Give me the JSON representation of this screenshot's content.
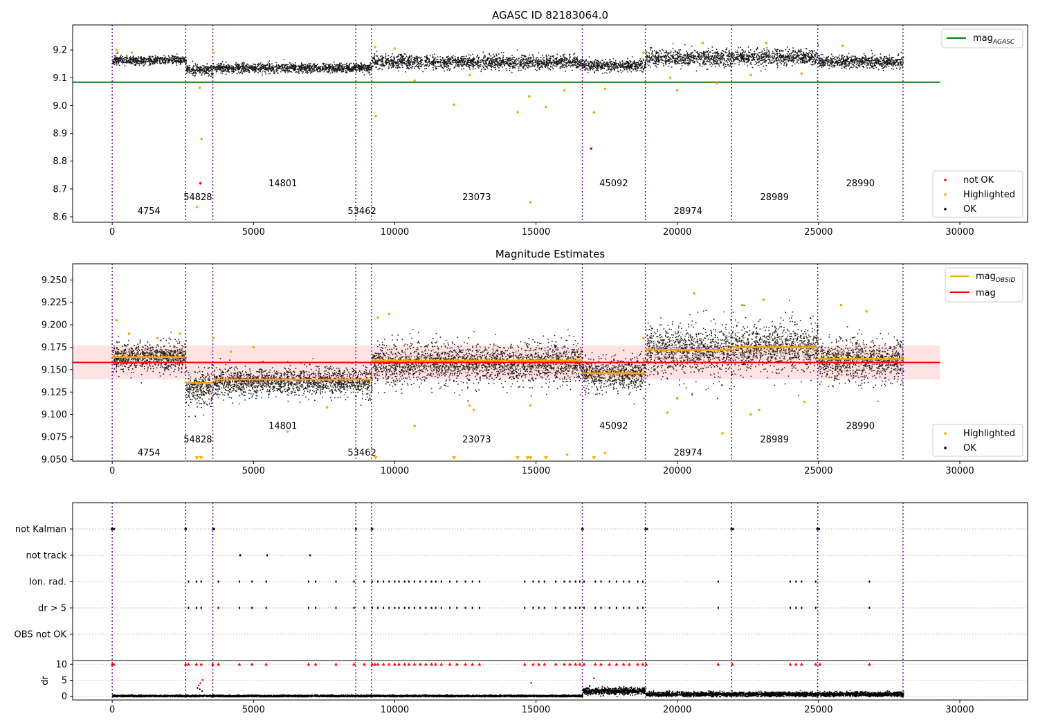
{
  "chart_data": [
    {
      "type": "scatter",
      "title": "AGASC ID 82183064.0",
      "xlim": [
        -1400,
        32400
      ],
      "ylim": [
        8.58,
        9.29
      ],
      "xticks": [
        0,
        5000,
        10000,
        15000,
        20000,
        25000,
        30000
      ],
      "yticks": [
        8.6,
        8.7,
        8.8,
        8.9,
        9.0,
        9.1,
        9.2
      ],
      "ytick_decimals": 1,
      "obs_boundaries": [
        0,
        2600,
        3560,
        8620,
        9180,
        16640,
        18870,
        21920,
        24970,
        27990
      ],
      "obsids": [
        {
          "label": "4754",
          "x": 1300,
          "y": 8.61
        },
        {
          "label": "54828",
          "x": 3030,
          "y": 8.66
        },
        {
          "label": "14801",
          "x": 6040,
          "y": 8.71
        },
        {
          "label": "53462",
          "x": 8840,
          "y": 8.61
        },
        {
          "label": "23073",
          "x": 12900,
          "y": 8.66
        },
        {
          "label": "45092",
          "x": 17750,
          "y": 8.71
        },
        {
          "label": "28974",
          "x": 20380,
          "y": 8.61
        },
        {
          "label": "28989",
          "x": 23440,
          "y": 8.66
        },
        {
          "label": "28990",
          "x": 26480,
          "y": 8.71
        }
      ],
      "mag_agasc": {
        "value": 9.084,
        "x_range": [
          -1400,
          29300
        ],
        "color": "#008000"
      },
      "segments": [
        {
          "x0": 0,
          "x1": 2600,
          "level": 9.165,
          "sd": 0.008
        },
        {
          "x0": 2600,
          "x1": 3560,
          "level": 9.13,
          "sd": 0.01
        },
        {
          "x0": 3560,
          "x1": 8620,
          "level": 9.137,
          "sd": 0.008
        },
        {
          "x0": 8620,
          "x1": 9180,
          "level": 9.137,
          "sd": 0.008
        },
        {
          "x0": 9180,
          "x1": 16640,
          "level": 9.158,
          "sd": 0.012
        },
        {
          "x0": 16640,
          "x1": 18870,
          "level": 9.146,
          "sd": 0.01
        },
        {
          "x0": 18870,
          "x1": 21920,
          "level": 9.172,
          "sd": 0.015
        },
        {
          "x0": 21920,
          "x1": 24970,
          "level": 9.175,
          "sd": 0.014
        },
        {
          "x0": 24970,
          "x1": 27990,
          "level": 9.16,
          "sd": 0.012
        }
      ],
      "not_ok_points": [
        [
          3120,
          8.72
        ],
        [
          16950,
          8.845
        ]
      ],
      "highlighted_points": [
        [
          3100,
          9.064
        ],
        [
          3000,
          8.635
        ],
        [
          3160,
          8.88
        ],
        [
          9330,
          8.962
        ],
        [
          10700,
          9.09
        ],
        [
          12100,
          9.003
        ],
        [
          12650,
          9.11
        ],
        [
          14350,
          8.976
        ],
        [
          14800,
          8.652
        ],
        [
          14760,
          9.033
        ],
        [
          15350,
          8.995
        ],
        [
          16000,
          9.055
        ],
        [
          17050,
          8.975
        ],
        [
          17450,
          9.06
        ],
        [
          19750,
          9.1
        ],
        [
          20000,
          9.055
        ],
        [
          21400,
          9.08
        ],
        [
          22600,
          9.11
        ],
        [
          24400,
          9.115
        ],
        [
          150,
          9.2
        ],
        [
          700,
          9.19
        ],
        [
          3580,
          9.19
        ],
        [
          9300,
          9.21
        ],
        [
          10000,
          9.205
        ],
        [
          18800,
          9.19
        ],
        [
          20900,
          9.225
        ],
        [
          23150,
          9.225
        ],
        [
          25850,
          9.215
        ]
      ],
      "legend": {
        "line": [
          {
            "label_main": "mag",
            "label_sub": "AGASC",
            "color": "#008000"
          }
        ],
        "points": [
          {
            "label": "not OK",
            "color": "#ff0000"
          },
          {
            "label": "Highlighted",
            "color": "#ffa500"
          },
          {
            "label": "OK",
            "color": "#000000"
          }
        ]
      }
    },
    {
      "type": "scatter",
      "title": "Magnitude Estimates",
      "xlim": [
        -1400,
        32400
      ],
      "ylim": [
        9.048,
        9.268
      ],
      "xticks": [
        0,
        5000,
        10000,
        15000,
        20000,
        25000,
        30000
      ],
      "yticks": [
        9.05,
        9.075,
        9.1,
        9.125,
        9.15,
        9.175,
        9.2,
        9.225,
        9.25
      ],
      "ytick_decimals": 3,
      "obs_boundaries": [
        0,
        2600,
        3560,
        8620,
        9180,
        16640,
        18870,
        21920,
        24970,
        27990
      ],
      "obsids": [
        {
          "label": "4754",
          "x": 1300,
          "y": 9.054
        },
        {
          "label": "54828",
          "x": 3030,
          "y": 9.069
        },
        {
          "label": "14801",
          "x": 6040,
          "y": 9.084
        },
        {
          "label": "53462",
          "x": 8840,
          "y": 9.054
        },
        {
          "label": "23073",
          "x": 12900,
          "y": 9.069
        },
        {
          "label": "45092",
          "x": 17750,
          "y": 9.084
        },
        {
          "label": "28974",
          "x": 20380,
          "y": 9.054
        },
        {
          "label": "28989",
          "x": 23440,
          "y": 9.069
        },
        {
          "label": "28990",
          "x": 26480,
          "y": 9.084
        }
      ],
      "mag": {
        "value": 9.158,
        "band": [
          9.139,
          9.177
        ],
        "x_range": [
          -1400,
          29300
        ],
        "color": "#ff0000"
      },
      "mag_obsid": [
        {
          "x0": 0,
          "x1": 2600,
          "value": 9.164
        },
        {
          "x0": 2600,
          "x1": 3560,
          "value": 9.135
        },
        {
          "x0": 3560,
          "x1": 9180,
          "value": 9.139
        },
        {
          "x0": 9180,
          "x1": 16640,
          "value": 9.16
        },
        {
          "x0": 16640,
          "x1": 18870,
          "value": 9.146
        },
        {
          "x0": 18870,
          "x1": 21920,
          "value": 9.172
        },
        {
          "x0": 21920,
          "x1": 24970,
          "value": 9.175
        },
        {
          "x0": 24970,
          "x1": 27990,
          "value": 9.162
        }
      ],
      "segments": [
        {
          "x0": 0,
          "x1": 2600,
          "level": 9.165,
          "sd": 0.008
        },
        {
          "x0": 2600,
          "x1": 3560,
          "level": 9.13,
          "sd": 0.01
        },
        {
          "x0": 3560,
          "x1": 8620,
          "level": 9.137,
          "sd": 0.008
        },
        {
          "x0": 8620,
          "x1": 9180,
          "level": 9.137,
          "sd": 0.008
        },
        {
          "x0": 9180,
          "x1": 16640,
          "level": 9.158,
          "sd": 0.012
        },
        {
          "x0": 16640,
          "x1": 18870,
          "level": 9.146,
          "sd": 0.01
        },
        {
          "x0": 18870,
          "x1": 21920,
          "level": 9.172,
          "sd": 0.015
        },
        {
          "x0": 21920,
          "x1": 24970,
          "level": 9.175,
          "sd": 0.014
        },
        {
          "x0": 24970,
          "x1": 27990,
          "level": 9.16,
          "sd": 0.012
        }
      ],
      "highlighted_points": [
        [
          150,
          9.205
        ],
        [
          600,
          9.19
        ],
        [
          1600,
          9.185
        ],
        [
          2400,
          9.19
        ],
        [
          3580,
          9.185
        ],
        [
          4200,
          9.17
        ],
        [
          5000,
          9.175
        ],
        [
          6200,
          9.081
        ],
        [
          7600,
          9.108
        ],
        [
          9400,
          9.208
        ],
        [
          9800,
          9.212
        ],
        [
          10700,
          9.087
        ],
        [
          12650,
          9.11
        ],
        [
          12800,
          9.105
        ],
        [
          14800,
          9.11
        ],
        [
          16100,
          9.055
        ],
        [
          17450,
          9.057
        ],
        [
          18800,
          9.185
        ],
        [
          19650,
          9.102
        ],
        [
          20000,
          9.118
        ],
        [
          20600,
          9.235
        ],
        [
          21600,
          9.079
        ],
        [
          22300,
          9.222
        ],
        [
          22600,
          9.1
        ],
        [
          22900,
          9.105
        ],
        [
          23050,
          9.228
        ],
        [
          24500,
          9.114
        ],
        [
          25800,
          9.222
        ],
        [
          26700,
          9.215
        ]
      ],
      "offscale_points": [
        3000,
        3150,
        9320,
        12100,
        14350,
        14700,
        14800,
        15350,
        17050
      ],
      "legend": {
        "line": [
          {
            "label_main": "mag",
            "label_sub": "OBSID",
            "color": "#ffa500"
          },
          {
            "label_main": "mag",
            "label_sub": "",
            "color": "#ff0000"
          }
        ],
        "points": [
          {
            "label": "Highlighted",
            "color": "#ffa500"
          },
          {
            "label": "OK",
            "color": "#000000"
          }
        ]
      }
    },
    {
      "type": "scatter",
      "title": "",
      "xlim": [
        -1400,
        32400
      ],
      "flag_rows": [
        "not Kalman",
        "not track",
        "Ion. rad.",
        "dr > 5",
        "OBS not OK"
      ],
      "obs_boundaries": [
        0,
        2600,
        3560,
        8620,
        9180,
        16640,
        18870,
        21920,
        24970,
        27990
      ],
      "flags": {
        "not Kalman": [
          [
            -50,
            100
          ],
          [
            2560,
            2640
          ],
          [
            3540,
            3640
          ],
          [
            8600,
            8660
          ],
          [
            9150,
            9240
          ],
          [
            16600,
            16690
          ],
          [
            18840,
            18960
          ],
          [
            21880,
            22010
          ],
          [
            24920,
            25050
          ]
        ],
        "not track": [
          [
            4500,
            4560
          ],
          [
            5460,
            5500
          ],
          [
            6980,
            7010
          ]
        ],
        "Ion. rad.": [
          2700,
          2980,
          3150,
          3760,
          4500,
          4950,
          5450,
          6950,
          7200,
          7920,
          8560,
          8920,
          9200,
          9400,
          9600,
          9800,
          10000,
          10150,
          10350,
          10500,
          10700,
          10900,
          11100,
          11300,
          11450,
          11650,
          11950,
          12200,
          12500,
          12750,
          13000,
          14600,
          14900,
          15100,
          15300,
          15700,
          16000,
          16200,
          16400,
          16550,
          16700,
          17100,
          17300,
          17600,
          17850,
          18100,
          18300,
          18600,
          18780,
          21450,
          24000,
          24200,
          24400,
          24900,
          26800
        ],
        "dr > 5": [
          2700,
          2980,
          3150,
          3760,
          4500,
          4950,
          5450,
          6950,
          7200,
          7920,
          8560,
          8920,
          9200,
          9400,
          9600,
          9800,
          10000,
          10150,
          10350,
          10500,
          10700,
          10900,
          11100,
          11300,
          11450,
          11650,
          11950,
          12200,
          12500,
          12750,
          13000,
          14600,
          14900,
          15100,
          15300,
          15700,
          16000,
          16200,
          16400,
          16550,
          16700,
          17100,
          17300,
          17600,
          17850,
          18100,
          18300,
          18600,
          18780,
          21450,
          24000,
          24200,
          24400,
          24900,
          26800
        ],
        "OBS not OK": []
      },
      "dr_ylabel": "dr",
      "dr_ylim": [
        -0.5,
        10.5
      ],
      "dr_yticks": [
        0,
        5,
        10
      ],
      "dr_clipped_points": [
        0,
        60,
        2600,
        2700,
        2980,
        3150,
        3560,
        3760,
        4500,
        4950,
        5450,
        6950,
        7200,
        7920,
        8560,
        8920,
        9200,
        9300,
        9400,
        9600,
        9800,
        10000,
        10150,
        10350,
        10500,
        10700,
        10900,
        11100,
        11300,
        11450,
        11650,
        11950,
        12200,
        12500,
        12750,
        13000,
        14600,
        14900,
        15100,
        15300,
        15700,
        16000,
        16200,
        16400,
        16550,
        16700,
        17100,
        17300,
        17600,
        17850,
        18100,
        18300,
        18600,
        18780,
        18900,
        21450,
        21950,
        24000,
        24200,
        24400,
        24900,
        25050,
        26800
      ],
      "dr_segments": [
        {
          "x0": 0,
          "x1": 16640,
          "level": 0.25,
          "sd": 0.15
        },
        {
          "x0": 16640,
          "x1": 18870,
          "level": 1.8,
          "sd": 0.5
        },
        {
          "x0": 18870,
          "x1": 27990,
          "level": 0.8,
          "sd": 0.35
        }
      ],
      "dr_red_points": [
        [
          3060,
          3.4
        ],
        [
          3120,
          4.1
        ],
        [
          3200,
          5.1
        ],
        [
          14830,
          4.2
        ],
        [
          17050,
          5.6
        ],
        [
          17350,
          2.9
        ],
        [
          18000,
          2.7
        ]
      ],
      "dr_black_spikes": [
        [
          3020,
          2.6
        ],
        [
          3100,
          2.2
        ],
        [
          3180,
          1.6
        ],
        [
          16900,
          3.2
        ],
        [
          18200,
          2.6
        ]
      ]
    }
  ]
}
